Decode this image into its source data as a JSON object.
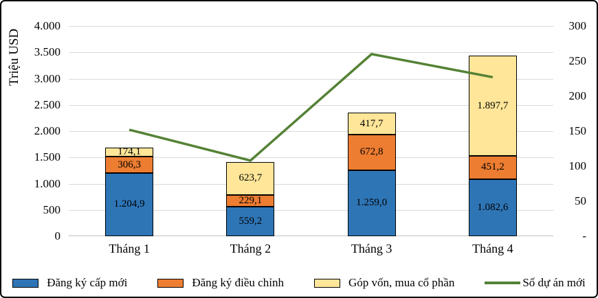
{
  "chart_data": {
    "type": "bar",
    "subtype": "stacked-bars-with-line",
    "title": "",
    "ylabel_left": "Triệu USD",
    "ylabel_right": "",
    "categories": [
      "Tháng 1",
      "Tháng 2",
      "Tháng 3",
      "Tháng 4"
    ],
    "bar_series": [
      {
        "name": "Đăng ký cấp mới",
        "color": "#2E75B6",
        "values": [
          1204.9,
          559.2,
          1259.0,
          1082.6
        ],
        "labels": [
          "1.204,9",
          "559,2",
          "1.259,0",
          "1.082,6"
        ]
      },
      {
        "name": "Đăng ký điều chỉnh",
        "color": "#ED7D31",
        "values": [
          306.3,
          229.1,
          672.8,
          451.2
        ],
        "labels": [
          "306,3",
          "229,1",
          "672,8",
          "451,2"
        ]
      },
      {
        "name": "Góp vốn, mua cổ phần",
        "color": "#FFE699",
        "values": [
          174.1,
          623.7,
          417.7,
          1897.7
        ],
        "labels": [
          "174,1",
          "623,7",
          "417,7",
          "1.897,7"
        ]
      }
    ],
    "line_series": {
      "name": "Số dự án mới",
      "color": "#548235",
      "axis": "right",
      "values": [
        152,
        108,
        260,
        227
      ]
    },
    "left_axis": {
      "min": 0,
      "max": 4000,
      "step": 500,
      "tick_labels": [
        "0",
        "500",
        "1.000",
        "1.500",
        "2.000",
        "2.500",
        "3.000",
        "3.500",
        "4.000"
      ]
    },
    "right_axis": {
      "min": 0,
      "max": 300,
      "step": 50,
      "tick_labels": [
        "-",
        "50",
        "100",
        "150",
        "200",
        "250",
        "300"
      ]
    },
    "grid": true,
    "legend_position": "bottom",
    "style": {
      "background": "#FFFFFF",
      "frame_border": "#000000",
      "gridline_color": "#D9D9D9",
      "axis_line_color": "#BFBFBF",
      "bar_border_color": "#000000",
      "text_color": "#000000"
    }
  }
}
